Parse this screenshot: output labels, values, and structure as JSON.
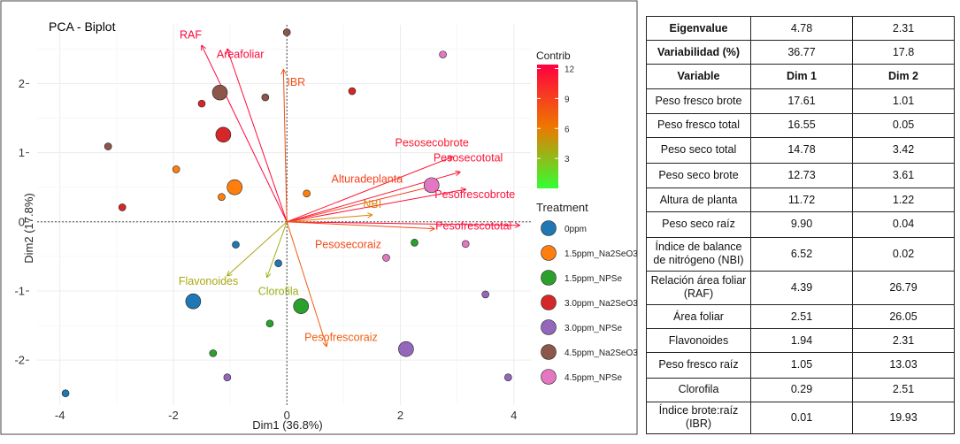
{
  "chart_data": {
    "type": "scatter",
    "title": "PCA - Biplot",
    "xlabel": "Dim1 (36.8%)",
    "ylabel": "Dim2 (17.8%)",
    "xlim": [
      -4.4,
      4.3
    ],
    "ylim": [
      -2.65,
      2.85
    ],
    "xticks": [
      -4,
      -2,
      0,
      2,
      4
    ],
    "yticks": [
      -2,
      -1,
      0,
      1,
      2
    ],
    "grid": true,
    "legend_position": "right",
    "contrib_legend": {
      "title": "Contrib",
      "ticks": [
        3,
        6,
        9,
        12
      ],
      "range": [
        0,
        12.4
      ],
      "colors": {
        "low": "#33ff33",
        "mid": "#ee7700",
        "high": "#ff0040"
      }
    },
    "treatment_legend": {
      "title": "Treatment",
      "entries": [
        {
          "label": "0ppm",
          "color": "#1f77b4"
        },
        {
          "label": "1.5ppm_Na2SeO3",
          "color": "#ff7f0e"
        },
        {
          "label": "1.5ppm_NPSe",
          "color": "#2ca02c"
        },
        {
          "label": "3.0ppm_Na2SeO3",
          "color": "#d62728"
        },
        {
          "label": "3.0ppm_NPSe",
          "color": "#9467bd"
        },
        {
          "label": "4.5ppm_Na2SeO3",
          "color": "#8c564b"
        },
        {
          "label": "4.5ppm_NPSe",
          "color": "#e377c2"
        }
      ]
    },
    "points": [
      {
        "x": -3.9,
        "y": -2.48,
        "g": 0,
        "big": false
      },
      {
        "x": -1.65,
        "y": -1.15,
        "g": 0,
        "big": true
      },
      {
        "x": -0.9,
        "y": -0.33,
        "g": 0,
        "big": false
      },
      {
        "x": -0.15,
        "y": -0.6,
        "g": 0,
        "big": false
      },
      {
        "x": -1.95,
        "y": 0.76,
        "g": 1,
        "big": false
      },
      {
        "x": -1.15,
        "y": 0.36,
        "g": 1,
        "big": false
      },
      {
        "x": -0.92,
        "y": 0.5,
        "g": 1,
        "big": true
      },
      {
        "x": 0.35,
        "y": 0.41,
        "g": 1,
        "big": false
      },
      {
        "x": -1.3,
        "y": -1.9,
        "g": 2,
        "big": false
      },
      {
        "x": -0.3,
        "y": -1.47,
        "g": 2,
        "big": false
      },
      {
        "x": 0.25,
        "y": -1.22,
        "g": 2,
        "big": true
      },
      {
        "x": 2.25,
        "y": -0.3,
        "g": 2,
        "big": false
      },
      {
        "x": -2.9,
        "y": 0.21,
        "g": 3,
        "big": false
      },
      {
        "x": -1.5,
        "y": 1.71,
        "g": 3,
        "big": false
      },
      {
        "x": -1.12,
        "y": 1.26,
        "g": 3,
        "big": true
      },
      {
        "x": 1.15,
        "y": 1.89,
        "g": 3,
        "big": false
      },
      {
        "x": -1.05,
        "y": -2.25,
        "g": 4,
        "big": false
      },
      {
        "x": 2.1,
        "y": -1.84,
        "g": 4,
        "big": true
      },
      {
        "x": 3.5,
        "y": -1.05,
        "g": 4,
        "big": false
      },
      {
        "x": 3.9,
        "y": -2.25,
        "g": 4,
        "big": false
      },
      {
        "x": -3.15,
        "y": 1.09,
        "g": 5,
        "big": false
      },
      {
        "x": -1.18,
        "y": 1.87,
        "g": 5,
        "big": true
      },
      {
        "x": -0.38,
        "y": 1.8,
        "g": 5,
        "big": false
      },
      {
        "x": 0,
        "y": 2.74,
        "g": 5,
        "big": false
      },
      {
        "x": 2.75,
        "y": 2.42,
        "g": 6,
        "big": false
      },
      {
        "x": 2.55,
        "y": 0.53,
        "g": 6,
        "big": true
      },
      {
        "x": 1.75,
        "y": -0.52,
        "g": 6,
        "big": false
      },
      {
        "x": 3.15,
        "y": -0.32,
        "g": 6,
        "big": false
      }
    ],
    "vectors": [
      {
        "label": "RAF",
        "x": -1.5,
        "y": 2.55,
        "contrib": 12.2
      },
      {
        "label": "Areafoliar",
        "x": -1.05,
        "y": 2.5,
        "contrib": 11.8
      },
      {
        "label": "IBR",
        "x": -0.06,
        "y": 2.2,
        "contrib": 8.3
      },
      {
        "label": "Pesosecobrote",
        "x": 2.92,
        "y": 0.94,
        "contrib": 11.0
      },
      {
        "label": "Pesosecototal",
        "x": 3.05,
        "y": 0.72,
        "contrib": 11.3
      },
      {
        "label": "Alturadeplanta",
        "x": 2.5,
        "y": 0.5,
        "contrib": 9.0
      },
      {
        "label": "Pesofrescobrote",
        "x": 3.15,
        "y": 0.47,
        "contrib": 11.6
      },
      {
        "label": "NBI",
        "x": 1.5,
        "y": 0.1,
        "contrib": 5.5
      },
      {
        "label": "Pesofrescototal",
        "x": 4.1,
        "y": -0.05,
        "contrib": 11.8
      },
      {
        "label": "Pesosecoraiz",
        "x": 2.6,
        "y": -0.1,
        "contrib": 8.5
      },
      {
        "label": "Flavonoides",
        "x": -1.05,
        "y": -0.78,
        "contrib": 4.0
      },
      {
        "label": "Clorofila",
        "x": -0.35,
        "y": -0.8,
        "contrib": 3.5
      },
      {
        "label": "Pesofrescoraiz",
        "x": 0.7,
        "y": -1.8,
        "contrib": 7.5
      }
    ]
  },
  "table": {
    "eigen_row": {
      "label": "Eigenvalue",
      "dim1": "4.78",
      "dim2": "2.31"
    },
    "var_row": {
      "label": "Variabilidad (%)",
      "dim1": "36.77",
      "dim2": "17.8"
    },
    "header": {
      "label": "Variable",
      "dim1": "Dim 1",
      "dim2": "Dim 2"
    },
    "rows": [
      {
        "variable": "Peso fresco brote",
        "dim1": "17.61",
        "dim2": "1.01"
      },
      {
        "variable": "Peso fresco total",
        "dim1": "16.55",
        "dim2": "0.05"
      },
      {
        "variable": "Peso seco total",
        "dim1": "14.78",
        "dim2": "3.42"
      },
      {
        "variable": "Peso seco brote",
        "dim1": "12.73",
        "dim2": "3.61"
      },
      {
        "variable": "Altura de planta",
        "dim1": "11.72",
        "dim2": "1.22"
      },
      {
        "variable": "Peso seco raíz",
        "dim1": "9.90",
        "dim2": "0.04"
      },
      {
        "variable": "Índice de balance de nitrógeno (NBI)",
        "dim1": "6.52",
        "dim2": "0.02"
      },
      {
        "variable": "Relación área foliar (RAF)",
        "dim1": "4.39",
        "dim2": "26.79"
      },
      {
        "variable": "Área foliar",
        "dim1": "2.51",
        "dim2": "26.05"
      },
      {
        "variable": "Flavonoides",
        "dim1": "1.94",
        "dim2": "2.31"
      },
      {
        "variable": "Peso fresco raíz",
        "dim1": "1.05",
        "dim2": "13.03"
      },
      {
        "variable": "Clorofila",
        "dim1": "0.29",
        "dim2": "2.51"
      },
      {
        "variable": "Índice brote:raíz (IBR)",
        "dim1": "0.01",
        "dim2": "19.93"
      }
    ]
  }
}
